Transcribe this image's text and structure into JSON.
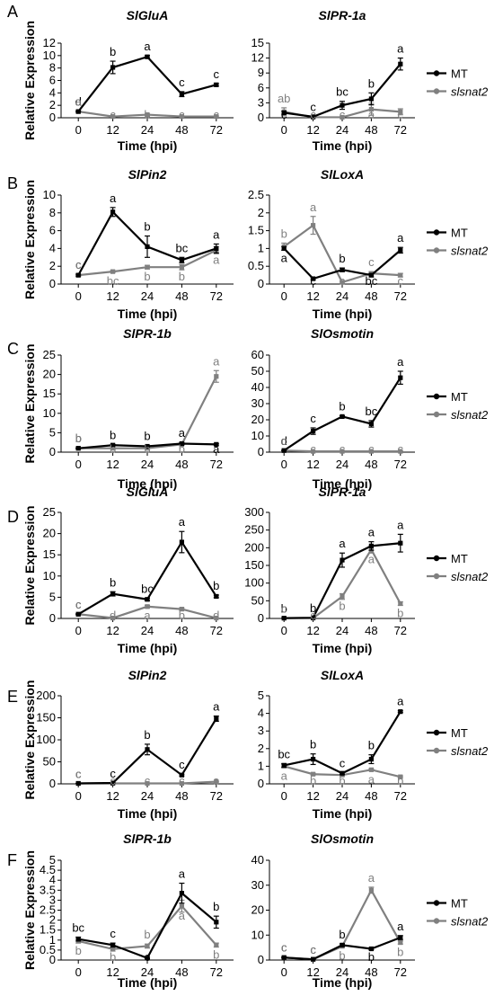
{
  "figure": {
    "ylabel": "Relative Expression",
    "xlabel": "Time (hpi)",
    "legend": [
      "MT",
      "slsnat2"
    ]
  },
  "colors": {
    "MT": "#000000",
    "slsnat2": "#808080"
  },
  "chart_data": [
    {
      "type": "line",
      "panel": "A",
      "title": "SlGluA",
      "xlabel": "Time (hpi)",
      "ylabel": "Relative Expression",
      "categories": [
        "0",
        "12",
        "24",
        "48",
        "72"
      ],
      "ylim": [
        0,
        12
      ],
      "yticks": [
        0,
        2,
        4,
        6,
        8,
        10,
        12
      ],
      "series": [
        {
          "name": "MT",
          "values": [
            1,
            8.1,
            9.8,
            3.8,
            5.3
          ],
          "errors": [
            0.1,
            1.0,
            0.2,
            0.4,
            0.2
          ],
          "letters": [
            "d",
            "b",
            "a",
            "c",
            "c"
          ]
        },
        {
          "name": "slsnat2",
          "values": [
            1,
            0.2,
            0.5,
            0.2,
            0.2
          ],
          "errors": [
            0.1,
            0.1,
            0.1,
            0.1,
            0.1
          ],
          "letters": [
            "a",
            "c",
            "b",
            "c",
            "c"
          ]
        }
      ]
    },
    {
      "type": "line",
      "panel": "A2",
      "title": "SlPR-1a",
      "xlabel": "Time (hpi)",
      "ylabel": "",
      "categories": [
        "0",
        "12",
        "24",
        "48",
        "72"
      ],
      "ylim": [
        0,
        15
      ],
      "yticks": [
        0,
        3,
        6,
        9,
        12,
        15
      ],
      "series": [
        {
          "name": "MT",
          "values": [
            1,
            0.2,
            2.5,
            3.8,
            10.8
          ],
          "errors": [
            0.3,
            0.1,
            0.8,
            1.2,
            1.2
          ],
          "letters": [
            "c",
            "c",
            "bc",
            "b",
            "a"
          ]
        },
        {
          "name": "slsnat2",
          "values": [
            1.2,
            0.1,
            0.1,
            1.7,
            1.2
          ],
          "errors": [
            0.8,
            0.1,
            0.1,
            1.2,
            0.6
          ],
          "letters": [
            "ab",
            "c",
            "c",
            "a",
            "c"
          ]
        }
      ]
    },
    {
      "type": "line",
      "panel": "B",
      "title": "SlPin2",
      "xlabel": "Time (hpi)",
      "ylabel": "Relative Expression",
      "categories": [
        "0",
        "12",
        "24",
        "48",
        "72"
      ],
      "ylim": [
        0,
        10
      ],
      "yticks": [
        0,
        2,
        4,
        6,
        8,
        10
      ],
      "series": [
        {
          "name": "MT",
          "values": [
            1,
            8.1,
            4.2,
            2.7,
            4.0
          ],
          "errors": [
            0.1,
            0.5,
            1.2,
            0.3,
            0.5
          ],
          "letters": [
            "c",
            "a",
            "b",
            "bc",
            "a"
          ]
        },
        {
          "name": "slsnat2",
          "values": [
            1,
            1.4,
            1.9,
            1.9,
            3.8
          ],
          "errors": [
            0.1,
            0.1,
            0.2,
            0.3,
            0.4
          ],
          "letters": [
            "c",
            "bc",
            "b",
            "b",
            "a"
          ]
        }
      ]
    },
    {
      "type": "line",
      "panel": "B2",
      "title": "SlLoxA",
      "xlabel": "Time (hpi)",
      "ylabel": "",
      "categories": [
        "0",
        "12",
        "24",
        "48",
        "72"
      ],
      "ylim": [
        0,
        2.5
      ],
      "yticks": [
        0,
        0.5,
        1,
        1.5,
        2,
        2.5
      ],
      "series": [
        {
          "name": "MT",
          "values": [
            1,
            0.15,
            0.4,
            0.25,
            0.95
          ],
          "errors": [
            0.05,
            0.03,
            0.05,
            0.05,
            0.08
          ],
          "letters": [
            "a",
            "c",
            "b",
            "bc",
            "a"
          ]
        },
        {
          "name": "slsnat2",
          "values": [
            1.05,
            1.65,
            0.05,
            0.3,
            0.25
          ],
          "errors": [
            0.1,
            0.25,
            0.03,
            0.05,
            0.05
          ],
          "letters": [
            "b",
            "a",
            "c",
            "c",
            "c"
          ]
        }
      ]
    },
    {
      "type": "line",
      "panel": "C",
      "title": "SlPR-1b",
      "xlabel": "Time (hpi)",
      "ylabel": "Relative Expression",
      "categories": [
        "0",
        "12",
        "24",
        "48",
        "72"
      ],
      "ylim": [
        0,
        25
      ],
      "yticks": [
        0,
        5,
        10,
        15,
        20,
        25
      ],
      "series": [
        {
          "name": "MT",
          "values": [
            1,
            1.8,
            1.5,
            2.2,
            2.0
          ],
          "errors": [
            0.1,
            0.2,
            0.2,
            0.3,
            0.2
          ],
          "letters": [
            "b",
            "b",
            "b",
            "a",
            "a"
          ]
        },
        {
          "name": "slsnat2",
          "values": [
            1,
            1,
            1,
            2,
            19.5
          ],
          "errors": [
            0.1,
            0.1,
            0.1,
            0.2,
            1.5
          ],
          "letters": [
            "b",
            "b",
            "b",
            "b",
            "a"
          ]
        }
      ]
    },
    {
      "type": "line",
      "panel": "C2",
      "title": "SlOsmotin",
      "xlabel": "Time (hpi)",
      "ylabel": "",
      "categories": [
        "0",
        "12",
        "24",
        "48",
        "72"
      ],
      "ylim": [
        0,
        60
      ],
      "yticks": [
        0,
        10,
        20,
        30,
        40,
        50,
        60
      ],
      "series": [
        {
          "name": "MT",
          "values": [
            1,
            13,
            22,
            17.5,
            46
          ],
          "errors": [
            0.2,
            2,
            0.5,
            2,
            4
          ],
          "letters": [
            "d",
            "c",
            "b",
            "bc",
            "a"
          ]
        },
        {
          "name": "slsnat2",
          "values": [
            1,
            0.5,
            0.5,
            0.5,
            0.5
          ],
          "errors": [
            0.1,
            0.1,
            0.1,
            0.1,
            0.1
          ],
          "letters": [
            "c",
            "c",
            "c",
            "c",
            "c"
          ]
        }
      ]
    },
    {
      "type": "line",
      "panel": "D",
      "title": "SlGluA",
      "xlabel": "Time (hpi)",
      "ylabel": "Relative Expression",
      "categories": [
        "0",
        "12",
        "24",
        "48",
        "72"
      ],
      "ylim": [
        0,
        25
      ],
      "yticks": [
        0,
        5,
        10,
        15,
        20,
        25
      ],
      "series": [
        {
          "name": "MT",
          "values": [
            1,
            5.8,
            4.5,
            18,
            5.2
          ],
          "errors": [
            0.1,
            0.5,
            0.3,
            2.5,
            0.3
          ],
          "letters": [
            "c",
            "b",
            "bc",
            "a",
            "b"
          ]
        },
        {
          "name": "slsnat2",
          "values": [
            1,
            0.1,
            2.8,
            2.2,
            0.1
          ],
          "errors": [
            0.1,
            0.05,
            0.3,
            0.3,
            0.05
          ],
          "letters": [
            "c",
            "d",
            "a",
            "b",
            "d"
          ]
        }
      ]
    },
    {
      "type": "line",
      "panel": "D2",
      "title": "SlPR-1a",
      "xlabel": "Time (hpi)",
      "ylabel": "",
      "categories": [
        "0",
        "12",
        "24",
        "48",
        "72"
      ],
      "ylim": [
        0,
        300
      ],
      "yticks": [
        0,
        50,
        100,
        150,
        200,
        250,
        300
      ],
      "series": [
        {
          "name": "MT",
          "values": [
            1,
            2,
            165,
            205,
            213
          ],
          "errors": [
            0.3,
            0.5,
            20,
            12,
            25
          ],
          "letters": [
            "b",
            "b",
            "a",
            "a",
            "a"
          ]
        },
        {
          "name": "slsnat2",
          "values": [
            1,
            1,
            62,
            195,
            42
          ],
          "errors": [
            0.2,
            0.2,
            8,
            10,
            5
          ],
          "letters": [
            "c",
            "c",
            "b",
            "a",
            "b"
          ]
        }
      ]
    },
    {
      "type": "line",
      "panel": "E",
      "title": "SlPin2",
      "xlabel": "Time (hpi)",
      "ylabel": "Relative Expression",
      "categories": [
        "0",
        "12",
        "24",
        "48",
        "72"
      ],
      "ylim": [
        0,
        200
      ],
      "yticks": [
        0,
        50,
        100,
        150,
        200
      ],
      "series": [
        {
          "name": "MT",
          "values": [
            1,
            2,
            78,
            20,
            148
          ],
          "errors": [
            0.2,
            0.5,
            12,
            2,
            6
          ],
          "letters": [
            "c",
            "c",
            "b",
            "c",
            "a"
          ]
        },
        {
          "name": "slsnat2",
          "values": [
            1,
            1,
            1,
            1,
            5
          ],
          "errors": [
            0.1,
            0.1,
            0.1,
            0.1,
            1
          ],
          "letters": [
            "c",
            "c",
            "c",
            "c",
            "a"
          ]
        }
      ]
    },
    {
      "type": "line",
      "panel": "E2",
      "title": "SlLoxA",
      "xlabel": "Time (hpi)",
      "ylabel": "",
      "categories": [
        "0",
        "12",
        "24",
        "48",
        "72"
      ],
      "ylim": [
        0,
        5
      ],
      "yticks": [
        0,
        1,
        2,
        3,
        4,
        5
      ],
      "series": [
        {
          "name": "MT",
          "values": [
            1.05,
            1.4,
            0.6,
            1.4,
            4.1
          ],
          "errors": [
            0.1,
            0.3,
            0.05,
            0.25,
            0.05
          ],
          "letters": [
            "bc",
            "b",
            "c",
            "b",
            "a"
          ]
        },
        {
          "name": "slsnat2",
          "values": [
            1,
            0.55,
            0.5,
            0.8,
            0.4
          ],
          "errors": [
            0.1,
            0.05,
            0.05,
            0.05,
            0.05
          ],
          "letters": [
            "a",
            "b",
            "b",
            "a",
            "b"
          ]
        }
      ]
    },
    {
      "type": "line",
      "panel": "F",
      "title": "SlPR-1b",
      "xlabel": "Time (hpi)",
      "ylabel": "Relative Expression",
      "categories": [
        "0",
        "12",
        "24",
        "48",
        "72"
      ],
      "ylim": [
        0,
        5
      ],
      "yticks": [
        0,
        0.5,
        1,
        1.5,
        2,
        2.5,
        3,
        3.5,
        4,
        4.5,
        5
      ],
      "series": [
        {
          "name": "MT",
          "values": [
            1.05,
            0.75,
            0.1,
            3.35,
            1.9
          ],
          "errors": [
            0.1,
            0.1,
            0.03,
            0.5,
            0.3
          ],
          "letters": [
            "bc",
            "c",
            "c",
            "a",
            "b"
          ]
        },
        {
          "name": "slsnat2",
          "values": [
            0.95,
            0.55,
            0.7,
            2.7,
            0.75
          ],
          "errors": [
            0.1,
            0.1,
            0.1,
            0.3,
            0.1
          ],
          "letters": [
            "b",
            "b",
            "b",
            "a",
            "b"
          ]
        }
      ]
    },
    {
      "type": "line",
      "panel": "F2",
      "title": "SlOsmotin",
      "xlabel": "Time (hpi)",
      "ylabel": "",
      "categories": [
        "0",
        "12",
        "24",
        "48",
        "72"
      ],
      "ylim": [
        0,
        40
      ],
      "yticks": [
        0,
        10,
        20,
        30,
        40
      ],
      "series": [
        {
          "name": "MT",
          "values": [
            1,
            0.3,
            6,
            4.5,
            9
          ],
          "errors": [
            0.2,
            0.1,
            0.5,
            0.4,
            0.8
          ],
          "letters": [
            "c",
            "c",
            "b",
            "b",
            "a"
          ]
        },
        {
          "name": "slsnat2",
          "values": [
            1,
            0.3,
            5.5,
            28,
            7
          ],
          "errors": [
            0.2,
            0.1,
            0.4,
            1.2,
            0.6
          ],
          "letters": [
            "c",
            "c",
            "b",
            "a",
            "b"
          ]
        }
      ]
    }
  ]
}
